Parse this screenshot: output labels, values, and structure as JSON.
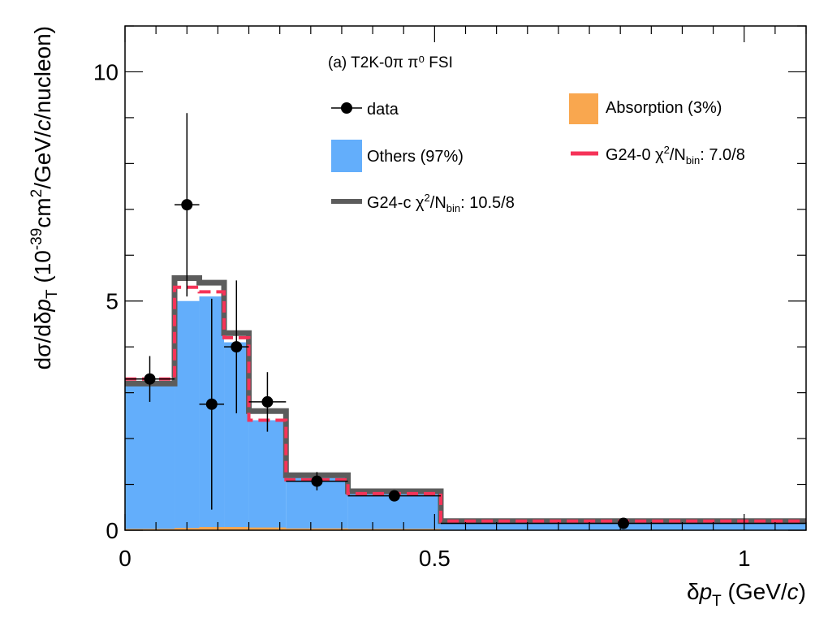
{
  "chart_data": {
    "type": "histogram",
    "title": "(a) T2K-0π  π⁰ FSI",
    "xlabel": {
      "pre": "δ",
      "var": "p",
      "sub": "T",
      "post": " (GeV/",
      "unit_var": "c",
      "close": ")"
    },
    "ylabel": {
      "p1": "dσ/dδ",
      "var": "p",
      "sub": "T",
      "p2": " (10",
      "sup1": "-39",
      "p3": "cm",
      "sup2": "2",
      "p4": "/GeV/",
      "unit_var": "c",
      "p5": "/nucleon)"
    },
    "xlim": [
      0,
      1.1
    ],
    "ylim": [
      0,
      11
    ],
    "x_ticks": [
      {
        "value": 0,
        "label": "0"
      },
      {
        "value": 0.5,
        "label": "0.5"
      },
      {
        "value": 1,
        "label": "1"
      }
    ],
    "y_ticks": [
      {
        "value": 0,
        "label": "0"
      },
      {
        "value": 5,
        "label": "5"
      },
      {
        "value": 10,
        "label": "10"
      }
    ],
    "bin_edges": [
      0,
      0.08,
      0.12,
      0.16,
      0.2,
      0.26,
      0.36,
      0.51,
      1.1
    ],
    "others": [
      3.2,
      5.0,
      5.1,
      4.1,
      2.4,
      1.15,
      0.8,
      0.16
    ],
    "absorption": [
      0.03,
      0.05,
      0.07,
      0.07,
      0.06,
      0.04,
      0.03,
      0.01
    ],
    "g24_0": [
      3.3,
      5.3,
      5.2,
      4.2,
      2.4,
      1.1,
      0.8,
      0.2
    ],
    "g24_c": [
      3.2,
      5.5,
      5.4,
      4.3,
      2.6,
      1.2,
      0.85,
      0.2
    ],
    "data": [
      {
        "x": 0.04,
        "xerr": 0.04,
        "y": 3.3,
        "yerr": 0.5
      },
      {
        "x": 0.1,
        "xerr": 0.02,
        "y": 7.1,
        "yerr": 2.0
      },
      {
        "x": 0.14,
        "xerr": 0.02,
        "y": 2.75,
        "yerr": 2.3
      },
      {
        "x": 0.18,
        "xerr": 0.02,
        "y": 4.0,
        "yerr": 1.45
      },
      {
        "x": 0.23,
        "xerr": 0.03,
        "y": 2.8,
        "yerr": 0.65
      },
      {
        "x": 0.31,
        "xerr": 0.05,
        "y": 1.07,
        "yerr": 0.2
      },
      {
        "x": 0.435,
        "xerr": 0.075,
        "y": 0.75,
        "yerr": 0.07
      },
      {
        "x": 0.805,
        "xerr": 0.295,
        "y": 0.15,
        "yerr": 0.02
      }
    ],
    "legend": {
      "data": "data",
      "absorption": "Absorption (3%)",
      "others": "Others (97%)",
      "g24_0": {
        "pre": "G24-0 χ",
        "sup": "2",
        "mid": "/N",
        "sub": "bin",
        "post": ": 7.0/8"
      },
      "g24_c": {
        "pre": "G24-c χ",
        "sup": "2",
        "mid": "/N",
        "sub": "bin",
        "post": ": 10.5/8"
      }
    },
    "colors": {
      "others": "#63aefb",
      "absorption": "#f9a74f",
      "g24_0": "#f53358",
      "g24_c": "#5c5c5c",
      "data": "#000000"
    }
  }
}
